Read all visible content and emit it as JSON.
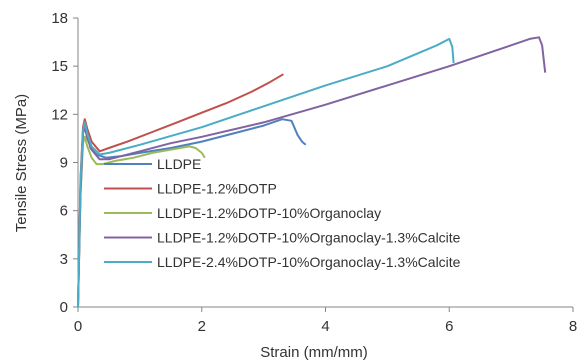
{
  "chart_data": {
    "type": "line",
    "title": "",
    "xlabel": "Strain (mm/mm)",
    "ylabel": "Tensile  Stress (MPa)",
    "xlim": [
      0,
      8
    ],
    "ylim": [
      0,
      18
    ],
    "xticks": [
      "0",
      "2",
      "4",
      "6",
      "8"
    ],
    "yticks": [
      "0",
      "3",
      "6",
      "9",
      "12",
      "15",
      "18"
    ],
    "grid": false,
    "legend_position": "inside-lower-center",
    "series": [
      {
        "name": "LLDPE",
        "color": "#4f81bd",
        "x": [
          0,
          0.04,
          0.08,
          0.11,
          0.15,
          0.2,
          0.3,
          0.45,
          0.7,
          1.0,
          1.5,
          2.0,
          2.5,
          3.0,
          3.3,
          3.45,
          3.55,
          3.62,
          3.68
        ],
        "y": [
          0,
          7.5,
          11.0,
          11.5,
          10.7,
          9.9,
          9.5,
          9.3,
          9.4,
          9.6,
          9.9,
          10.3,
          10.8,
          11.3,
          11.7,
          11.6,
          10.7,
          10.3,
          10.1
        ]
      },
      {
        "name": "LLDPE-1.2%DOTP",
        "color": "#c0504d",
        "x": [
          0,
          0.04,
          0.08,
          0.11,
          0.15,
          0.22,
          0.35,
          0.5,
          0.8,
          1.2,
          1.6,
          2.0,
          2.4,
          2.8,
          3.1,
          3.32
        ],
        "y": [
          0,
          8.0,
          11.2,
          11.7,
          11.1,
          10.3,
          9.7,
          9.9,
          10.3,
          10.9,
          11.5,
          12.1,
          12.7,
          13.4,
          14.0,
          14.5
        ]
      },
      {
        "name": "LLDPE-1.2%DOTP-10%Organoclay",
        "color": "#9bbb59",
        "x": [
          0,
          0.04,
          0.08,
          0.11,
          0.15,
          0.22,
          0.3,
          0.4,
          0.6,
          0.9,
          1.2,
          1.5,
          1.8,
          1.9,
          2.0,
          2.05
        ],
        "y": [
          0,
          7.0,
          10.2,
          10.6,
          10.0,
          9.3,
          8.9,
          8.9,
          9.1,
          9.3,
          9.6,
          9.8,
          10.0,
          9.9,
          9.6,
          9.3
        ]
      },
      {
        "name": "LLDPE-1.2%DOTP-10%Organoclay-1.3%Calcite",
        "color": "#8064a2",
        "x": [
          0,
          0.04,
          0.08,
          0.11,
          0.15,
          0.22,
          0.35,
          0.5,
          1.0,
          1.5,
          2.0,
          3.0,
          4.0,
          5.0,
          6.0,
          7.0,
          7.3,
          7.45,
          7.5,
          7.55
        ],
        "y": [
          0,
          7.0,
          10.8,
          11.2,
          10.5,
          9.8,
          9.2,
          9.2,
          9.7,
          10.2,
          10.6,
          11.5,
          12.6,
          13.8,
          15.0,
          16.3,
          16.7,
          16.8,
          16.3,
          14.6
        ]
      },
      {
        "name": "LLDPE-2.4%DOTP-10%Organoclay-1.3%Calcite",
        "color": "#4bacc6",
        "x": [
          0,
          0.04,
          0.08,
          0.11,
          0.15,
          0.22,
          0.35,
          0.5,
          1.0,
          2.0,
          3.0,
          4.0,
          5.0,
          5.8,
          6.0,
          6.05,
          6.07
        ],
        "y": [
          0,
          7.8,
          11.0,
          11.5,
          10.8,
          10.0,
          9.5,
          9.6,
          10.1,
          11.2,
          12.5,
          13.8,
          15.0,
          16.3,
          16.7,
          16.2,
          15.2
        ]
      }
    ]
  }
}
